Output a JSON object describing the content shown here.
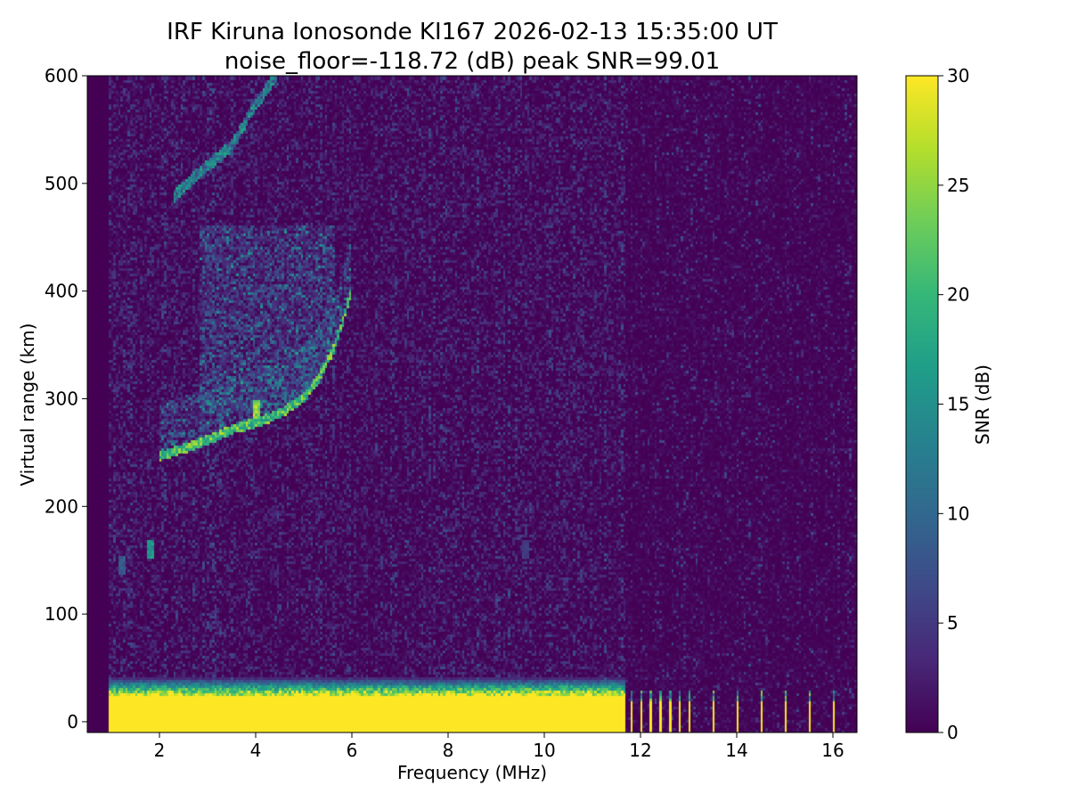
{
  "chart_data": {
    "type": "heatmap",
    "title_line1": "IRF Kiruna Ionosonde KI167 2026-02-13 15:35:00  UT",
    "title_line2": "noise_floor=-118.72 (dB) peak SNR=99.01",
    "xlabel": "Frequency (MHz)",
    "ylabel": "Virtual range (km)",
    "colorbar_label": "SNR (dB)",
    "xlim": [
      0.5,
      16.5
    ],
    "ylim": [
      -10,
      600
    ],
    "clim": [
      0,
      30
    ],
    "colormap": "viridis",
    "xticks": [
      2,
      4,
      6,
      8,
      10,
      12,
      14,
      16
    ],
    "yticks": [
      0,
      100,
      200,
      300,
      400,
      500,
      600
    ],
    "cticks": [
      0,
      5,
      10,
      15,
      20,
      25,
      30
    ],
    "data_start_freq": 0.95,
    "ground_clutter": {
      "freq_range": [
        0.95,
        11.7
      ],
      "range_top_km": 25,
      "fringe_top_km": 42,
      "snr": 30
    },
    "discrete_columns_mhz": [
      11.8,
      12.0,
      12.2,
      12.4,
      12.6,
      12.8,
      13.0,
      13.5,
      14.0,
      14.5,
      15.0,
      15.5,
      16.0
    ],
    "f_trace": [
      [
        2.0,
        245
      ],
      [
        2.5,
        252
      ],
      [
        3.0,
        260
      ],
      [
        3.5,
        270
      ],
      [
        4.0,
        276
      ],
      [
        4.5,
        285
      ],
      [
        5.0,
        300
      ],
      [
        5.3,
        318
      ],
      [
        5.6,
        345
      ],
      [
        5.8,
        370
      ],
      [
        5.95,
        395
      ]
    ],
    "second_hop_trace": [
      [
        2.3,
        488
      ],
      [
        2.7,
        505
      ],
      [
        3.1,
        520
      ],
      [
        3.5,
        535
      ],
      [
        3.9,
        568
      ],
      [
        4.1,
        580
      ],
      [
        4.4,
        600
      ]
    ],
    "spread_region": {
      "freq_range": [
        2.8,
        5.6
      ],
      "range_km": [
        290,
        460
      ],
      "snr": 12
    },
    "isolated_echoes": [
      [
        1.8,
        160,
        18
      ],
      [
        1.2,
        145,
        10
      ],
      [
        9.6,
        160,
        6
      ],
      [
        4.0,
        290,
        30
      ]
    ]
  }
}
